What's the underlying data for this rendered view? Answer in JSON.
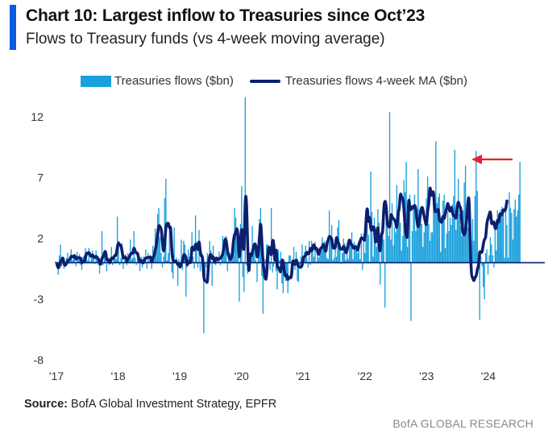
{
  "header": {
    "title": "Chart 10: Largest inflow to Treasuries since Oct’23",
    "subtitle": "Flows to Treasury funds (vs 4-week moving average)"
  },
  "footer": {
    "source_label": "Source:",
    "source_text": "BofA Global Investment Strategy, EPFR",
    "brand": "BofA GLOBAL RESEARCH"
  },
  "colors": {
    "accent": "#0a5ce0",
    "bars": "#1aa0dc",
    "ma_line": "#0c1f6e",
    "arrow": "#e8202a"
  },
  "chart_data": {
    "type": "bar",
    "legend": {
      "position": "top",
      "entries": [
        "Treasuries flows ($bn)",
        "Treasuries flows 4-week MA ($bn)"
      ]
    },
    "ylim": [
      -8,
      14
    ],
    "yticks": [
      -8,
      -3,
      2,
      7,
      12
    ],
    "x_tick_labels": [
      "'17",
      "'18",
      "'19",
      "'20",
      "'21",
      "'22",
      "'23",
      "'24"
    ],
    "x_tick_years": [
      2017,
      2018,
      2019,
      2020,
      2021,
      2022,
      2023,
      2024
    ],
    "grid": false,
    "annotation": {
      "type": "arrow",
      "color": "red",
      "points_to": "Oct 2023 peak"
    },
    "series": [
      {
        "name": "Treasuries flows ($bn)",
        "type": "bar",
        "values": [
          -0.4,
          -1,
          0.6,
          1.5,
          -0.3,
          0.1,
          -0.5,
          -0.2,
          0.4,
          0.8,
          -0.1,
          0.5,
          1.1,
          0.2,
          0.4,
          0.7,
          -0.3,
          0.9,
          0.3,
          0.7,
          -0.2,
          -0.6,
          0.5,
          0.6,
          1.2,
          0.9,
          0.2,
          1.2,
          0.1,
          0.4,
          1,
          0.3,
          -0.1,
          1,
          0.4,
          -0.2,
          -0.9,
          0.3,
          2.6,
          -0.2,
          0.6,
          0.9,
          -0.7,
          0.4,
          -0.2,
          0.3,
          1.3,
          -0.2,
          0.5,
          0.8,
          0.3,
          3.8,
          1.8,
          -0.2,
          0.4,
          1.6,
          -0.5,
          0.2,
          0.7,
          -0.2,
          0.8,
          0.3,
          1.9,
          0.3,
          0.4,
          2.6,
          0.4,
          -0.2,
          0.5,
          0.6,
          -0.7,
          0.5,
          -0.4,
          0.5,
          0.4,
          1.1,
          -0.5,
          0.8,
          0.2,
          0.6,
          -0.5,
          1.4,
          0.6,
          2.8,
          1.2,
          4,
          4.5,
          2.1,
          0.8,
          -0.4,
          0.5,
          5.3,
          6.9,
          0.2,
          0.8,
          3.3,
          -0.1,
          -0.8,
          -1.3,
          2.9,
          0.2,
          0.4,
          -1.9,
          0.3,
          -0.3,
          1.9,
          -0.6,
          1.8,
          1.5,
          -2.8,
          -0.4,
          1.1,
          0.5,
          1.3,
          2.5,
          0.5,
          -0.5,
          3.9,
          1.7,
          -0.4,
          2.7,
          -0.7,
          0.4,
          0.7,
          -5.8,
          -1.4,
          -0.4,
          0.8,
          0.2,
          1.8,
          1,
          -1.9,
          1.4,
          0.2,
          -0.2,
          0.3,
          0.4,
          0.9,
          -0.2,
          0.3,
          2.2,
          1.9,
          2.1,
          2.2,
          -0.7,
          0.5,
          0.8,
          0.7,
          0.4,
          1.5,
          4.5,
          3.7,
          2,
          1.6,
          -3.2,
          3.2,
          6.3,
          -1.2,
          -2.4,
          13.6,
          -0.2,
          -0.9,
          1.2,
          0.4,
          0.6,
          3,
          0.8,
          1.3,
          0.2,
          -1.6,
          2.1,
          3.6,
          4.5,
          -1.1,
          -4.2,
          -1,
          0.3,
          1.5,
          1.5,
          1.4,
          -0.6,
          4.5,
          -0.8,
          -0.3,
          1.5,
          -0.7,
          -2.2,
          1.1,
          0.2,
          0.9,
          -1.7,
          -2.5,
          0.1,
          -1.5,
          -1.5,
          -2.5,
          0.6,
          0.6,
          -0.6,
          -0.4,
          1.3,
          -0.6,
          0.9,
          -1.5,
          -1.6,
          -0.4,
          0.5,
          1.5,
          0.2,
          0.9,
          1.4,
          0.4,
          -0.4,
          1.8,
          -0.2,
          1.8,
          1.4,
          0.5,
          1.7,
          0.1,
          0.8,
          0.4,
          1.1,
          1.3,
          2.1,
          1.2,
          1.8,
          0.8,
          0.4,
          0.3,
          4.3,
          2.2,
          3.1,
          0.2,
          0.4,
          1.9,
          0.5,
          2.9,
          3.5,
          1.1,
          -0.1,
          0.8,
          2,
          1.6,
          0.2,
          1.3,
          0.3,
          1.5,
          1.9,
          2.5,
          0.3,
          1.7,
          1.5,
          1.4,
          0.8,
          1,
          0.3,
          2.4,
          -0.6,
          2.4,
          0.8,
          1.9,
          3.2,
          2.3,
          0.1,
          7.5,
          4.2,
          0.5,
          3.7,
          2.6,
          1.3,
          4.4,
          3.3,
          -1.8,
          1.9,
          3.3,
          1.9,
          -3.7,
          3.4,
          4.2,
          2.2,
          12.4,
          1.9,
          4.9,
          1.4,
          2.9,
          2.5,
          6.4,
          2.9,
          4.4,
          3.3,
          1,
          2.2,
          6.8,
          5.8,
          8.3,
          1.3,
          5,
          5.6,
          -4.8,
          2.6,
          4.8,
          5.6,
          2.6,
          3.2,
          7.7,
          4.4,
          3.5,
          3.2,
          1.3,
          2.5,
          3.8,
          5.3,
          7.1,
          3.2,
          1.8,
          2.5,
          2.5,
          5.7,
          4.7,
          10,
          4.9,
          5.4,
          5.7,
          0.9,
          3.8,
          5.1,
          5.6,
          1.2,
          2.4,
          4.2,
          2.6,
          3.7,
          3.1,
          4.8,
          5.5,
          9.3,
          2.7,
          4.3,
          6.9,
          4,
          3,
          2.2,
          4.3,
          6.6,
          8,
          4.5,
          2.9,
          4,
          0.5,
          1.8,
          3.6,
          1.8,
          5.5,
          9.2,
          5.9,
          0.9,
          -4.7,
          0.5,
          -0.3,
          -2,
          -3,
          0.8,
          1.1,
          -1,
          0.6,
          2.1,
          1.5,
          0.6,
          -0.4,
          3.3,
          1,
          4.3,
          3.3,
          3.9,
          4.4,
          4.6,
          4,
          0.4,
          4.6,
          3.1,
          0.4,
          5.8,
          4.5,
          4.1,
          1.9,
          4.4,
          5.2,
          3.8,
          4.3,
          5.6,
          8.3
        ]
      },
      {
        "name": "Treasuries flows 4-week MA ($bn)",
        "type": "line",
        "values": [
          -0.15,
          -0.46,
          -0.31,
          0.18,
          0.2,
          0.48,
          -0.16,
          -0.23,
          -0.05,
          0.13,
          0.24,
          0.25,
          0.59,
          0.43,
          0.56,
          0.6,
          0.25,
          0.42,
          0.41,
          0.4,
          0.4,
          -0.06,
          0.1,
          0.06,
          0.43,
          0.83,
          0.71,
          0.89,
          0.61,
          0.5,
          0.69,
          0.45,
          0.4,
          0.56,
          0.41,
          0.29,
          0.06,
          -0.22,
          0.45,
          0.44,
          0.83,
          0.99,
          0.16,
          0.31,
          0.1,
          -0.04,
          0.45,
          0.28,
          0.48,
          0.6,
          0.6,
          1.35,
          1.67,
          1.43,
          1.45,
          0.9,
          0.33,
          0.44,
          0.49,
          0.06,
          0.38,
          0.4,
          0.69,
          0.81,
          0.73,
          1.3,
          0.93,
          0.78,
          0.82,
          0.33,
          0.07,
          0.26,
          -0.01,
          -0.04,
          0.26,
          0.42,
          0.38,
          0.46,
          0.4,
          0.53,
          -0.0,
          0.42,
          0.53,
          1.08,
          1.5,
          2.4,
          3.12,
          2.95,
          2.84,
          1.75,
          0.75,
          1.55,
          3.07,
          3.23,
          3.27,
          2.8,
          3.05,
          0.8,
          0.14,
          0.05,
          0.17,
          0.07,
          -0.2,
          -0.11,
          -0.45,
          -0.02,
          0.04,
          0.7,
          0.65,
          0.43,
          -0.28,
          0.11,
          0.04,
          -0.03,
          1.35,
          1.2,
          0.95,
          1.6,
          1.4,
          0.93,
          1.98,
          0.82,
          0.5,
          0.53,
          -1.35,
          -1.5,
          -1.5,
          -1.72,
          0.05,
          0.6,
          0.73,
          0.27,
          0.58,
          -0.1,
          0.35,
          0.4,
          0.22,
          0.35,
          0.35,
          0.5,
          0.7,
          1.32,
          2.02,
          1.82,
          0.88,
          0.6,
          0.23,
          0.35,
          0.6,
          1.83,
          2.35,
          2.48,
          2.95,
          1.98,
          0.02,
          1.85,
          3.1,
          1.22,
          0.98,
          5.57,
          5.35,
          1.32,
          -1.22,
          0.92,
          0.45,
          0.87,
          1.33,
          1.6,
          1.42,
          0.33,
          0.72,
          2.05,
          3.58,
          1.68,
          -0.07,
          -0.65,
          -1.45,
          -1.22,
          0.82,
          1.36,
          1.05,
          0.45,
          1.9,
          1.77,
          -0.27,
          1.48,
          -0.38,
          -0.38,
          -0.6,
          -0.85,
          0.3,
          0.13,
          -0.77,
          -1.2,
          -0.9,
          -1.47,
          -1.15,
          -1.25,
          -1.23,
          0.23,
          0.05,
          -0.24,
          0.34,
          -0.07,
          -0.32,
          -0.37,
          -0.38,
          -0.25,
          0.47,
          0.5,
          0.54,
          0.92,
          0.71,
          0.77,
          1.28,
          0.88,
          1.3,
          1.55,
          1.05,
          1.27,
          0.94,
          0.6,
          1.08,
          1.22,
          1.27,
          1.6,
          1.2,
          0.8,
          1.64,
          1.82,
          2.23,
          2.03,
          2.04,
          1.2,
          1.22,
          1.17,
          2.23,
          1.75,
          1.58,
          1.11,
          1.12,
          1.1,
          1.4,
          1.2,
          0.74,
          1.05,
          1.55,
          1.97,
          1.5,
          1.51,
          1.23,
          1.18,
          1.35,
          1.22,
          0.95,
          1.56,
          1.75,
          2.08,
          2.0,
          1.93,
          1.77,
          3.48,
          4.8,
          3.08,
          4.0,
          2.7,
          2.65,
          3.0,
          2.88,
          1.48,
          2.17,
          3.2,
          1.28,
          0.78,
          2.48,
          2.33,
          4.6,
          5.18,
          4.68,
          3.06,
          3.02,
          2.85,
          4.08,
          3.75,
          3.63,
          3.55,
          3.32,
          2.7,
          4.11,
          4.37,
          5.83,
          5.35,
          5.35,
          4.5,
          2.8,
          2.1,
          2.05,
          5.6,
          4.35,
          4.35,
          4.68,
          4.42,
          4.78,
          4.5,
          3.38,
          2.85,
          3.35,
          4.08,
          4.62,
          4.42,
          3.83,
          3.4,
          2.97,
          4.33,
          4.82,
          6.46,
          5.43,
          5.73,
          5.92,
          4.15,
          4.27,
          4.19,
          4.51,
          3.43,
          3.39,
          3.29,
          3.95,
          3.53,
          4.12,
          4.43,
          5.01,
          4.44,
          4.15,
          4.68,
          4.11,
          3.81,
          3.92,
          3.53,
          4.7,
          5.08,
          4.6,
          4.58,
          3.1,
          2.38,
          2.25,
          2.6,
          3.62,
          5.04,
          5.57,
          1.33,
          -1.09,
          -1.21,
          -1.55,
          -1.2,
          -1.12,
          -0.52,
          -0.24,
          0.97,
          0.85,
          0.83,
          1.53,
          1.95,
          2.0,
          3.27,
          3.65,
          3.95,
          4.32,
          3.1,
          3.35,
          3.37,
          2.77,
          2.85,
          3.63,
          3.2,
          4.12,
          3.91,
          3.98,
          4.42,
          4.22,
          4.45,
          5.08
        ]
      }
    ]
  }
}
